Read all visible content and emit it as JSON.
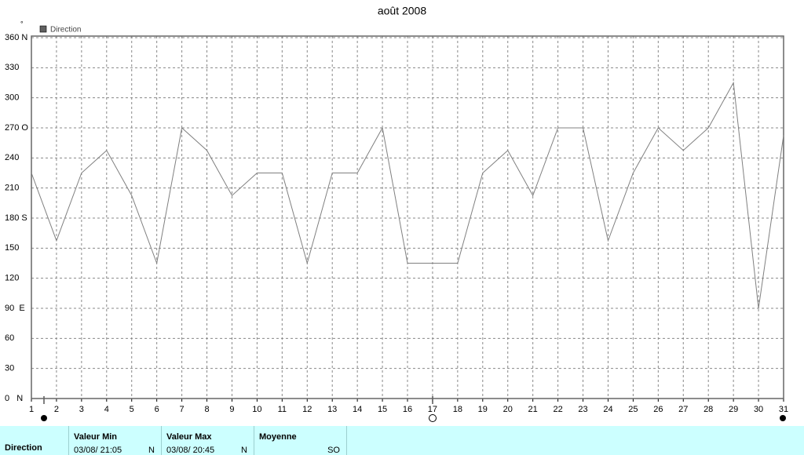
{
  "chart_data": {
    "type": "line",
    "title": "août 2008",
    "y_unit": "°",
    "x": [
      1,
      2,
      3,
      4,
      5,
      6,
      7,
      8,
      9,
      10,
      11,
      12,
      13,
      14,
      15,
      16,
      17,
      18,
      19,
      20,
      21,
      22,
      23,
      24,
      25,
      26,
      27,
      28,
      29,
      30,
      31
    ],
    "series": [
      {
        "name": "Direction",
        "color": "#808080",
        "values": [
          225,
          157.5,
          225,
          247.5,
          202.5,
          135,
          270,
          247.5,
          202.5,
          225,
          225,
          135,
          225,
          225,
          270,
          135,
          135,
          135,
          225,
          247.5,
          202.5,
          270,
          270,
          157.5,
          225,
          270,
          247.5,
          270,
          315,
          90,
          262.5
        ]
      }
    ],
    "xlim": [
      1,
      31
    ],
    "xticks": [
      1,
      2,
      3,
      4,
      5,
      6,
      7,
      8,
      9,
      10,
      11,
      12,
      13,
      14,
      15,
      16,
      17,
      18,
      19,
      20,
      21,
      22,
      23,
      24,
      25,
      26,
      27,
      28,
      29,
      30,
      31
    ],
    "ylim": [
      0,
      360
    ],
    "yticks": [
      {
        "value": 0,
        "label": "0   N"
      },
      30,
      60,
      {
        "value": 90,
        "label": "90  E"
      },
      120,
      150,
      {
        "value": 180,
        "label": "180 S"
      },
      210,
      240,
      {
        "value": 270,
        "label": "270 O"
      },
      300,
      330,
      {
        "value": 360,
        "label": "360 N"
      }
    ],
    "grid": true
  },
  "summary": {
    "row_label": "Direction",
    "columns": [
      {
        "header": "Valeur Min",
        "date": "03/08/  21:05",
        "dir": "N"
      },
      {
        "header": "Valeur Max",
        "date": "03/08/  20:45",
        "dir": "N"
      },
      {
        "header": "Moyenne",
        "dir": "SO"
      }
    ]
  }
}
